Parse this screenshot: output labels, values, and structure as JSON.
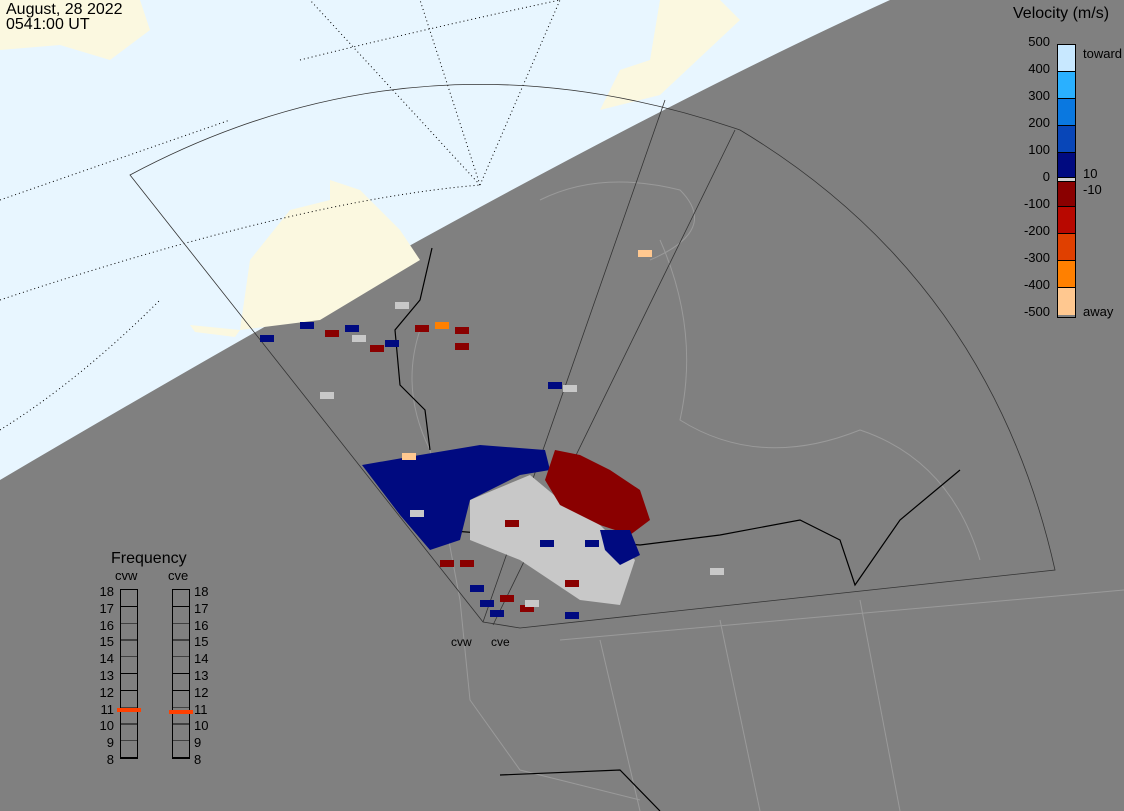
{
  "header": {
    "date": "August, 28 2022",
    "time": "0541:00 UT"
  },
  "velocity_scale": {
    "title": "Velocity (m/s)",
    "ticks": [
      "500",
      "400",
      "300",
      "200",
      "100",
      "0",
      "-100",
      "-200",
      "-300",
      "-400",
      "-500"
    ],
    "toward_label": "toward",
    "away_label": "away",
    "pos_threshold": "10",
    "neg_threshold": "-10",
    "colors": [
      "#c8e8ff",
      "#2ab0ff",
      "#0a78e0",
      "#0846b8",
      "#000a80",
      "#d0d0d0",
      "#8a0000",
      "#b80800",
      "#e04000",
      "#ff8000",
      "#ffc890"
    ]
  },
  "frequency": {
    "title": "Frequency",
    "radars": [
      {
        "name": "cvw",
        "value_mhz": 10.8
      },
      {
        "name": "cve",
        "value_mhz": 10.7
      }
    ],
    "ticks": [
      "18",
      "17",
      "16",
      "15",
      "14",
      "13",
      "12",
      "11",
      "10",
      "9",
      "8"
    ],
    "marker_color": "#ff4000"
  },
  "map": {
    "sites": [
      "cvw",
      "cve"
    ],
    "night_color": "#808080",
    "day_color": "#e8f6ff",
    "land_day_color": "#fbf8e0"
  }
}
